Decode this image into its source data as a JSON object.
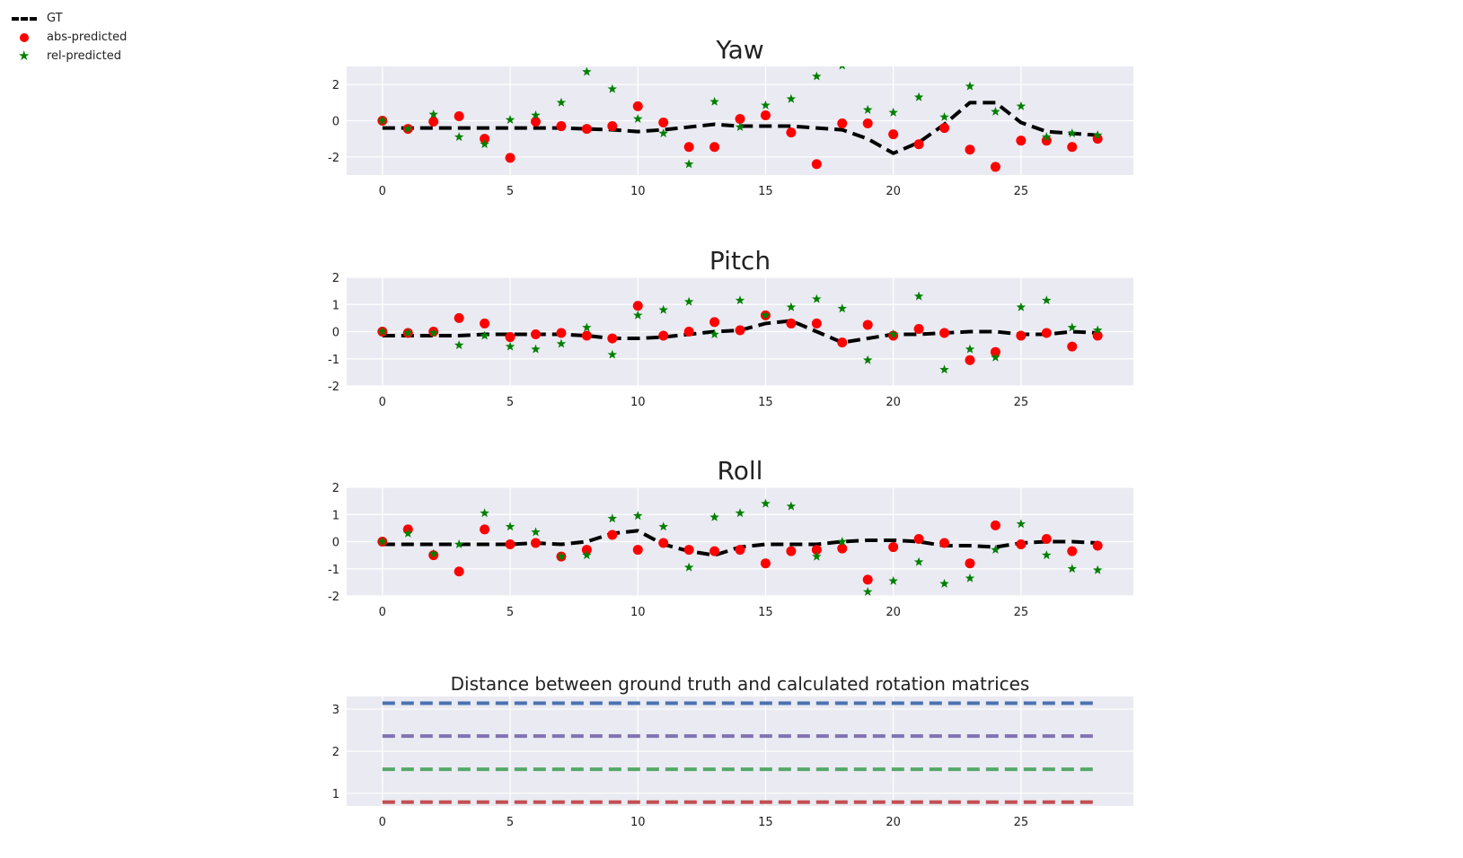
{
  "legend": {
    "gt_label": "GT",
    "abs_label": "abs-predicted",
    "rel_label": "rel-predicted"
  },
  "colors": {
    "gt": "#000000",
    "abs": "#ff0000",
    "rel": "#008000",
    "plot_bg": "#eaeaf2",
    "grid": "#ffffff",
    "distance_series": [
      "#4c72b0",
      "#8172b2",
      "#55a868",
      "#c44e52"
    ]
  },
  "chart_data": [
    {
      "type": "line",
      "title": "Yaw",
      "xlabel": "",
      "ylabel": "",
      "xlim": [
        -1.4,
        29.4
      ],
      "ylim": [
        -3,
        3
      ],
      "xticks": [
        0,
        5,
        10,
        15,
        20,
        25
      ],
      "yticks": [
        -2,
        0,
        2
      ],
      "grid": true,
      "x": [
        0,
        1,
        2,
        3,
        4,
        5,
        6,
        7,
        8,
        9,
        10,
        11,
        12,
        13,
        14,
        15,
        16,
        17,
        18,
        19,
        20,
        21,
        22,
        23,
        24,
        25,
        26,
        27,
        28
      ],
      "series": [
        {
          "name": "GT",
          "style": "dashed-line",
          "values": [
            -0.4,
            -0.4,
            -0.4,
            -0.4,
            -0.4,
            -0.4,
            -0.4,
            -0.4,
            -0.45,
            -0.5,
            -0.6,
            -0.5,
            -0.35,
            -0.2,
            -0.3,
            -0.3,
            -0.3,
            -0.4,
            -0.5,
            -1.0,
            -1.8,
            -1.2,
            -0.2,
            1.0,
            1.0,
            -0.1,
            -0.6,
            -0.7,
            -0.8
          ]
        },
        {
          "name": "abs-predicted",
          "style": "circle",
          "values": [
            0.0,
            -0.45,
            -0.05,
            0.25,
            -1.0,
            -2.05,
            -0.05,
            -0.3,
            -0.45,
            -0.3,
            0.8,
            -0.1,
            -1.45,
            -1.45,
            0.1,
            0.3,
            -0.65,
            -2.4,
            -0.15,
            -0.15,
            -0.75,
            -1.3,
            -0.4,
            -1.6,
            -2.55,
            -1.1,
            -1.1,
            -1.45,
            -1.0
          ]
        },
        {
          "name": "rel-predicted",
          "style": "star",
          "values": [
            0.0,
            -0.45,
            0.35,
            -0.9,
            -1.3,
            0.05,
            0.3,
            1.0,
            2.7,
            1.75,
            0.1,
            -0.7,
            -2.4,
            1.05,
            -0.35,
            0.85,
            1.2,
            2.45,
            3.05,
            0.6,
            0.45,
            1.3,
            0.2,
            1.9,
            0.5,
            0.8,
            -0.9,
            -0.7,
            -0.8
          ]
        }
      ]
    },
    {
      "type": "line",
      "title": "Pitch",
      "xlabel": "",
      "ylabel": "",
      "xlim": [
        -1.4,
        29.4
      ],
      "ylim": [
        -2,
        2
      ],
      "xticks": [
        0,
        5,
        10,
        15,
        20,
        25
      ],
      "yticks": [
        -2,
        -1,
        0,
        1,
        2
      ],
      "grid": true,
      "x": [
        0,
        1,
        2,
        3,
        4,
        5,
        6,
        7,
        8,
        9,
        10,
        11,
        12,
        13,
        14,
        15,
        16,
        17,
        18,
        19,
        20,
        21,
        22,
        23,
        24,
        25,
        26,
        27,
        28
      ],
      "series": [
        {
          "name": "GT",
          "style": "dashed-line",
          "values": [
            -0.15,
            -0.15,
            -0.15,
            -0.15,
            -0.1,
            -0.1,
            -0.1,
            -0.1,
            -0.15,
            -0.25,
            -0.25,
            -0.2,
            -0.1,
            0.0,
            0.05,
            0.3,
            0.4,
            0.0,
            -0.4,
            -0.25,
            -0.1,
            -0.1,
            -0.05,
            0.0,
            0.0,
            -0.1,
            -0.1,
            0.0,
            -0.05
          ]
        },
        {
          "name": "abs-predicted",
          "style": "circle",
          "values": [
            0.0,
            -0.05,
            0.0,
            0.5,
            0.3,
            -0.2,
            -0.1,
            -0.05,
            -0.15,
            -0.25,
            0.95,
            -0.15,
            0.0,
            0.35,
            0.05,
            0.6,
            0.3,
            0.3,
            -0.4,
            0.25,
            -0.15,
            0.1,
            -0.05,
            -1.05,
            -0.75,
            -0.15,
            -0.05,
            -0.55,
            -0.15
          ]
        },
        {
          "name": "rel-predicted",
          "style": "star",
          "values": [
            0.0,
            -0.05,
            -0.05,
            -0.5,
            -0.15,
            -0.55,
            -0.65,
            -0.45,
            0.15,
            -0.85,
            0.6,
            0.8,
            1.1,
            -0.1,
            1.15,
            0.6,
            0.9,
            1.2,
            0.85,
            -1.05,
            -0.1,
            1.3,
            -1.4,
            -0.65,
            -0.95,
            0.9,
            1.15,
            0.15,
            0.05
          ]
        }
      ]
    },
    {
      "type": "line",
      "title": "Roll",
      "xlabel": "",
      "ylabel": "",
      "xlim": [
        -1.4,
        29.4
      ],
      "ylim": [
        -2,
        2
      ],
      "xticks": [
        0,
        5,
        10,
        15,
        20,
        25
      ],
      "yticks": [
        -2,
        -1,
        0,
        1,
        2
      ],
      "grid": true,
      "x": [
        0,
        1,
        2,
        3,
        4,
        5,
        6,
        7,
        8,
        9,
        10,
        11,
        12,
        13,
        14,
        15,
        16,
        17,
        18,
        19,
        20,
        21,
        22,
        23,
        24,
        25,
        26,
        27,
        28
      ],
      "series": [
        {
          "name": "GT",
          "style": "dashed-line",
          "values": [
            -0.1,
            -0.1,
            -0.1,
            -0.1,
            -0.1,
            -0.1,
            -0.05,
            -0.1,
            0.0,
            0.3,
            0.4,
            -0.1,
            -0.35,
            -0.5,
            -0.2,
            -0.1,
            -0.1,
            -0.1,
            0.0,
            0.05,
            0.05,
            0.0,
            -0.15,
            -0.15,
            -0.2,
            -0.05,
            0.0,
            0.0,
            -0.05
          ]
        },
        {
          "name": "abs-predicted",
          "style": "circle",
          "values": [
            0.0,
            0.45,
            -0.5,
            -1.1,
            0.45,
            -0.1,
            -0.05,
            -0.55,
            -0.3,
            0.25,
            -0.3,
            -0.05,
            -0.3,
            -0.35,
            -0.3,
            -0.8,
            -0.35,
            -0.3,
            -0.25,
            -1.4,
            -0.2,
            0.1,
            -0.05,
            -0.8,
            0.6,
            -0.1,
            0.1,
            -0.35,
            -0.15
          ]
        },
        {
          "name": "rel-predicted",
          "style": "star",
          "values": [
            0.0,
            0.3,
            -0.45,
            -0.1,
            1.05,
            0.55,
            0.35,
            -0.55,
            -0.5,
            0.85,
            0.95,
            0.55,
            -0.95,
            0.9,
            1.05,
            1.4,
            1.3,
            -0.55,
            0.0,
            -1.85,
            -1.45,
            -0.75,
            -1.55,
            -1.35,
            -0.3,
            0.65,
            -0.5,
            -1.0,
            -1.05
          ]
        }
      ]
    },
    {
      "type": "line",
      "title": "Distance between ground truth and calculated rotation matrices",
      "xlabel": "",
      "ylabel": "",
      "xlim": [
        -1.4,
        29.4
      ],
      "ylim": [
        0.7,
        3.3
      ],
      "xticks": [
        0,
        5,
        10,
        15,
        20,
        25
      ],
      "yticks": [
        1,
        2,
        3
      ],
      "grid": true,
      "x": [
        0,
        28
      ],
      "series": [
        {
          "style": "dashed-line",
          "values": [
            3.14,
            3.14
          ]
        },
        {
          "style": "dashed-line",
          "values": [
            2.36,
            2.36
          ]
        },
        {
          "style": "dashed-line",
          "values": [
            1.57,
            1.57
          ]
        },
        {
          "style": "dashed-line",
          "values": [
            0.79,
            0.79
          ]
        }
      ]
    }
  ]
}
